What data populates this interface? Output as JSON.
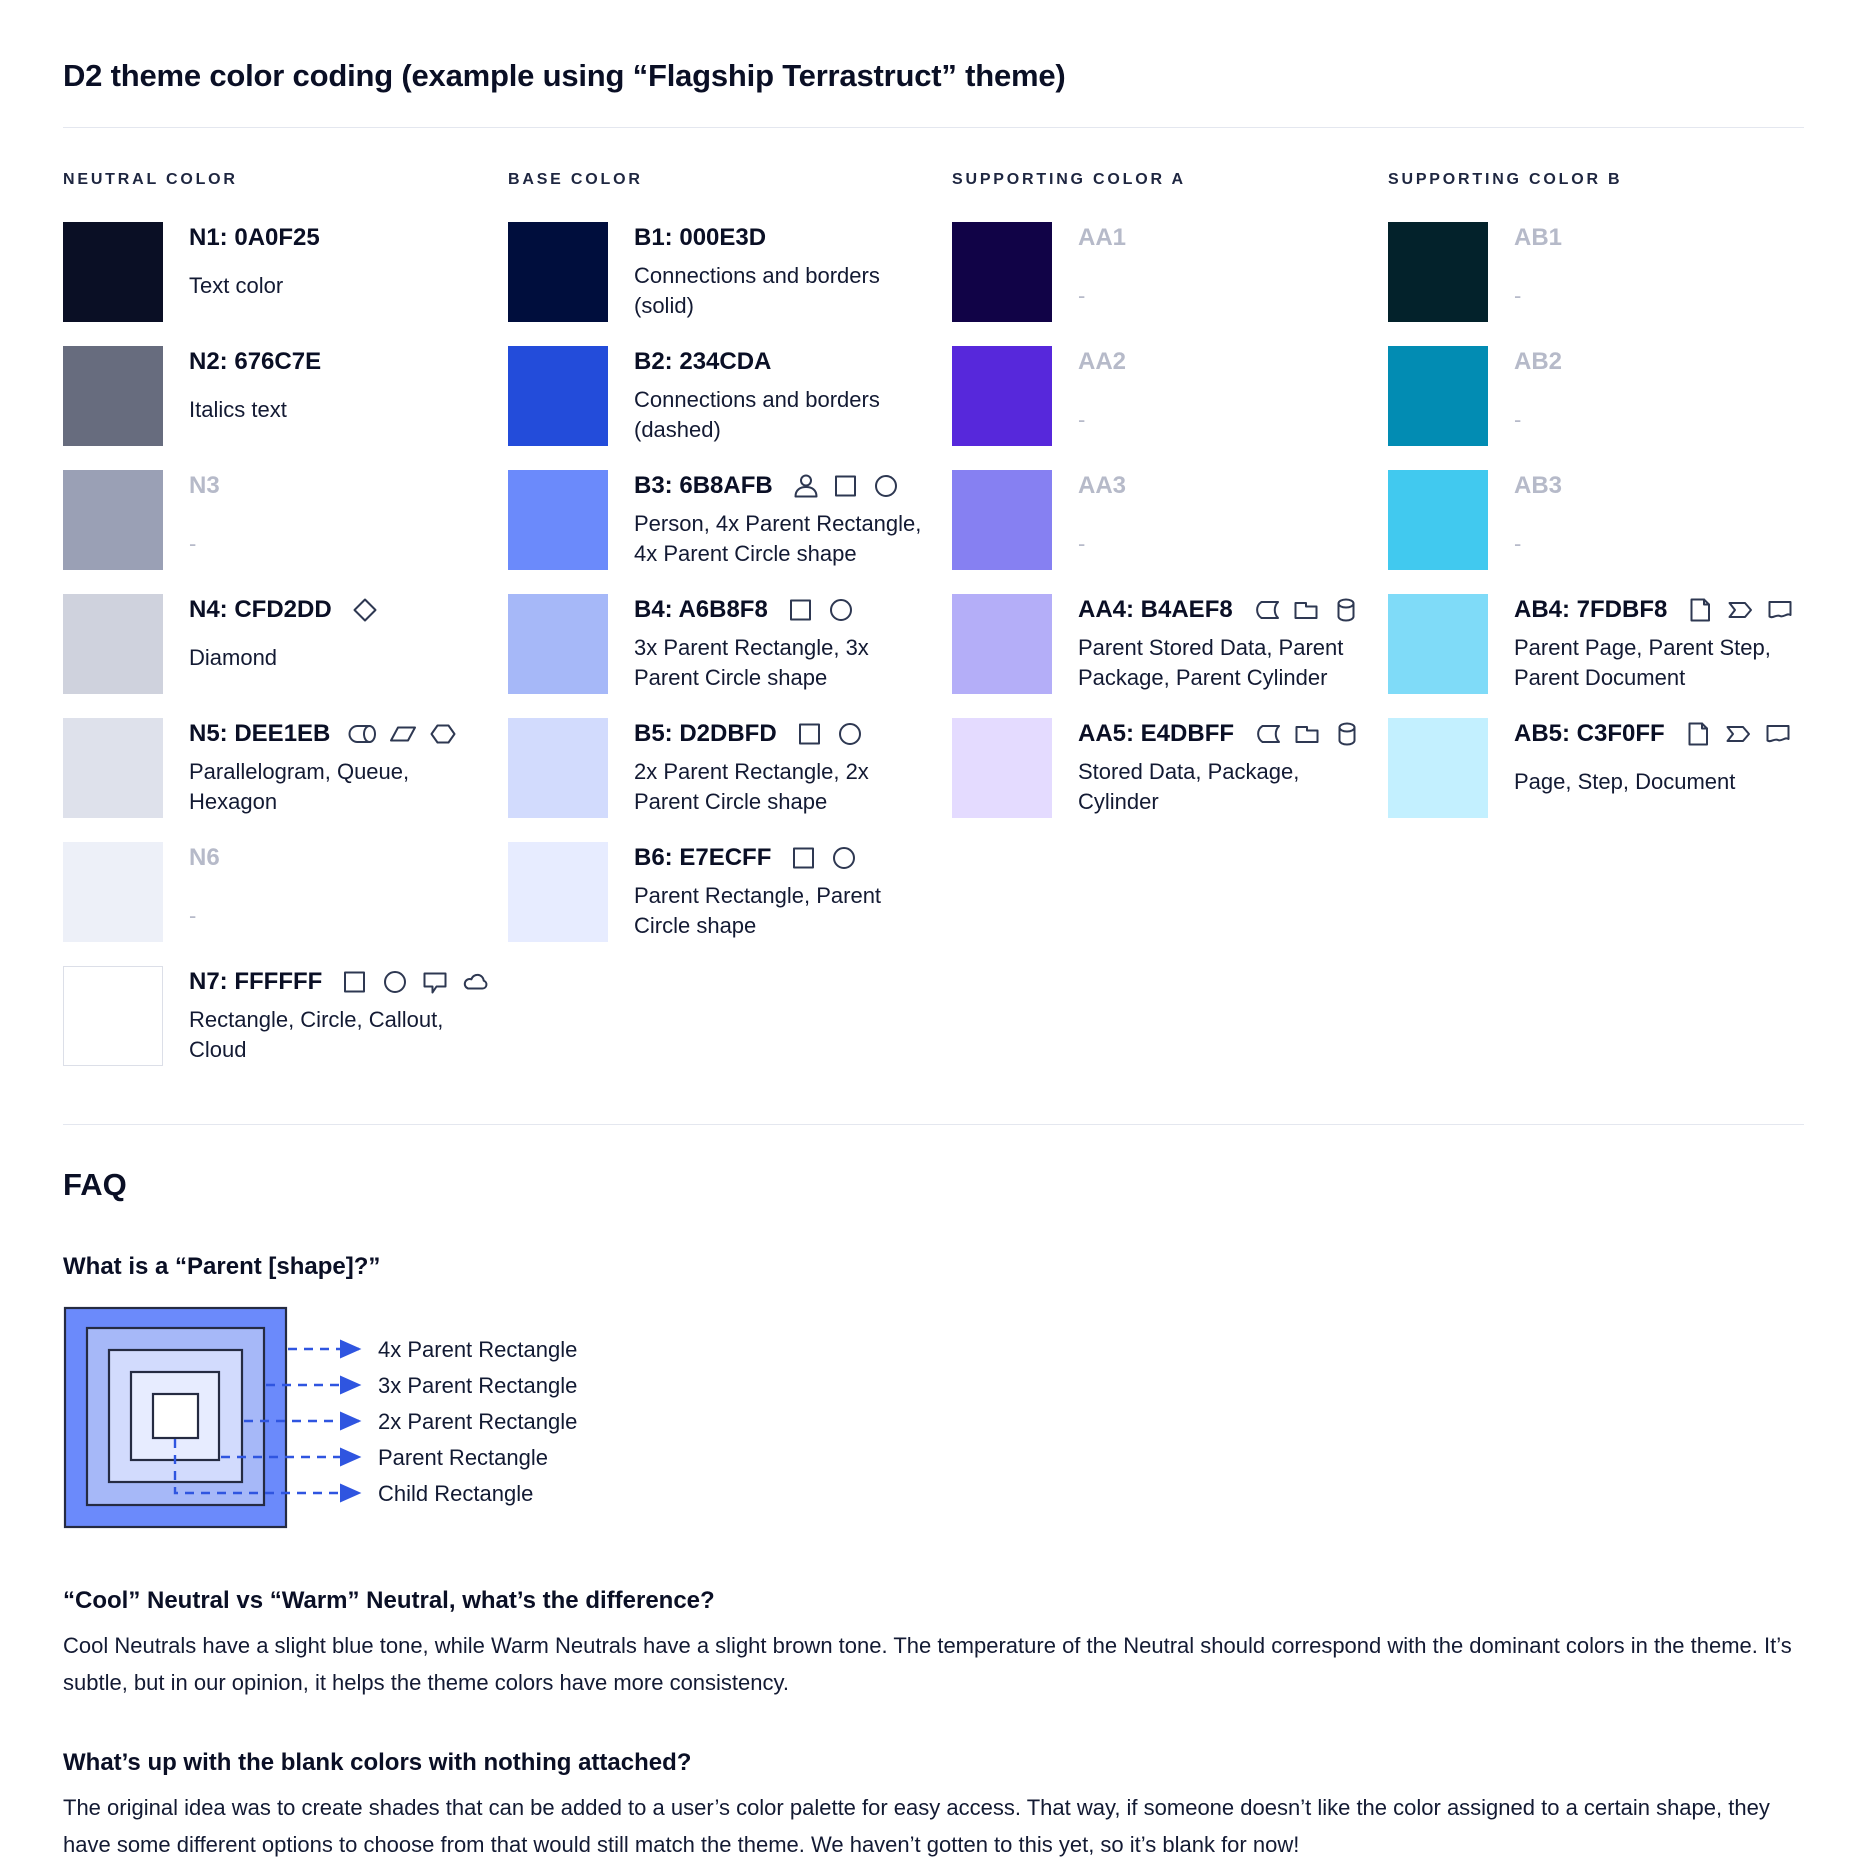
{
  "title": "D2 theme color coding (example using “Flagship Terrastruct” theme)",
  "columns": [
    {
      "header": "NEUTRAL COLOR",
      "rows": [
        {
          "label": "N1: 0A0F25",
          "color": "#0A0F25",
          "description": "Text color",
          "icons": [],
          "muted": false,
          "wide": true
        },
        {
          "label": "N2: 676C7E",
          "color": "#676C7E",
          "description": "Italics text",
          "icons": [],
          "muted": false,
          "wide": true
        },
        {
          "label": "N3",
          "color": "#9AA0B5",
          "description": "-",
          "icons": [],
          "muted": true
        },
        {
          "label": "N4: CFD2DD",
          "color": "#CFD2DD",
          "description": "Diamond",
          "icons": [
            "diamond"
          ],
          "muted": false,
          "wide": true
        },
        {
          "label": "N5: DEE1EB",
          "color": "#DEE1EB",
          "description": "Parallelogram, Queue, Hexagon",
          "icons": [
            "queue",
            "parallelogram",
            "hexagon"
          ],
          "muted": false
        },
        {
          "label": "N6",
          "color": "#EDF0F8",
          "description": "-",
          "icons": [],
          "muted": true
        },
        {
          "label": "N7: FFFFFF",
          "color": "#FFFFFF",
          "description": "Rectangle, Circle, Callout, Cloud",
          "icons": [
            "rectangle",
            "circle",
            "callout",
            "cloud"
          ],
          "muted": false,
          "bordered": true
        }
      ]
    },
    {
      "header": "BASE COLOR",
      "rows": [
        {
          "label": "B1: 000E3D",
          "color": "#000E3D",
          "description": "Connections and borders (solid)",
          "icons": [],
          "muted": false
        },
        {
          "label": "B2: 234CDA",
          "color": "#234CDA",
          "description": "Connections and borders (dashed)",
          "icons": [],
          "muted": false
        },
        {
          "label": "B3: 6B8AFB",
          "color": "#6B8AFB",
          "description": "Person, 4x Parent Rectangle, 4x Parent Circle shape",
          "icons": [
            "person",
            "rectangle",
            "circle"
          ],
          "muted": false
        },
        {
          "label": "B4: A6B8F8",
          "color": "#A6B8F8",
          "description": "3x Parent Rectangle, 3x Parent Circle shape",
          "icons": [
            "rectangle",
            "circle"
          ],
          "muted": false
        },
        {
          "label": "B5: D2DBFD",
          "color": "#D2DBFD",
          "description": "2x Parent Rectangle, 2x Parent Circle shape",
          "icons": [
            "rectangle",
            "circle"
          ],
          "muted": false
        },
        {
          "label": "B6: E7ECFF",
          "color": "#E7ECFF",
          "description": "Parent Rectangle, Parent Circle shape",
          "icons": [
            "rectangle",
            "circle"
          ],
          "muted": false
        }
      ]
    },
    {
      "header": "SUPPORTING COLOR A",
      "rows": [
        {
          "label": "AA1",
          "color": "#110347",
          "description": "-",
          "icons": [],
          "muted": true
        },
        {
          "label": "AA2",
          "color": "#5728DB",
          "description": "-",
          "icons": [],
          "muted": true
        },
        {
          "label": "AA3",
          "color": "#8680F2",
          "description": "-",
          "icons": [],
          "muted": true
        },
        {
          "label": "AA4: B4AEF8",
          "color": "#B4AEF8",
          "description": "Parent Stored Data, Parent Package, Parent Cylinder",
          "icons": [
            "stored-data",
            "package",
            "cylinder"
          ],
          "muted": false
        },
        {
          "label": "AA5: E4DBFF",
          "color": "#E4DBFF",
          "description": "Stored Data, Package, Cylinder",
          "icons": [
            "stored-data",
            "package",
            "cylinder"
          ],
          "muted": false
        }
      ]
    },
    {
      "header": "SUPPORTING COLOR B",
      "rows": [
        {
          "label": "AB1",
          "color": "#03222B",
          "description": "-",
          "icons": [],
          "muted": true
        },
        {
          "label": "AB2",
          "color": "#028CB3",
          "description": "-",
          "icons": [],
          "muted": true
        },
        {
          "label": "AB3",
          "color": "#41C9EF",
          "description": "-",
          "icons": [],
          "muted": true
        },
        {
          "label": "AB4: 7FDBF8",
          "color": "#7FDBF8",
          "description": "Parent Page, Parent Step, Parent Document",
          "icons": [
            "page",
            "step",
            "document"
          ],
          "muted": false
        },
        {
          "label": "AB5: C3F0FF",
          "color": "#C3F0FF",
          "description": "Page, Step, Document",
          "icons": [
            "page",
            "step",
            "document"
          ],
          "muted": false,
          "wide": true
        }
      ]
    }
  ],
  "faq": {
    "heading": "FAQ",
    "q_parent": {
      "question": "What is a “Parent [shape]?”",
      "diagram": {
        "labels": [
          "4x Parent Rectangle",
          "3x Parent Rectangle",
          "2x Parent Rectangle",
          "Parent Rectangle",
          "Child Rectangle"
        ],
        "fills": [
          "#6B8AFB",
          "#A6B8F8",
          "#D2DBFD",
          "#E7ECFF",
          "#FFFFFF"
        ],
        "stroke": "#252B42",
        "leader_color": "#2F55E0"
      }
    },
    "q_neutral": {
      "question": "“Cool” Neutral vs “Warm” Neutral, what’s the difference?",
      "answer": "Cool Neutrals have a slight blue tone, while Warm Neutrals have a slight brown tone. The temperature of the Neutral should correspond with the dominant colors in the theme. It’s subtle, but in our opinion, it helps the theme colors have more consistency."
    },
    "q_blank": {
      "question": "What’s up with the blank colors with nothing attached?",
      "answer": "The original idea was to create shades that can be added to a user’s color palette for easy access. That way, if someone doesn’t like the color assigned to a certain shape, they have some different options to choose from that would still match the theme. We haven’t gotten to this yet, so it’s blank for now!"
    }
  }
}
